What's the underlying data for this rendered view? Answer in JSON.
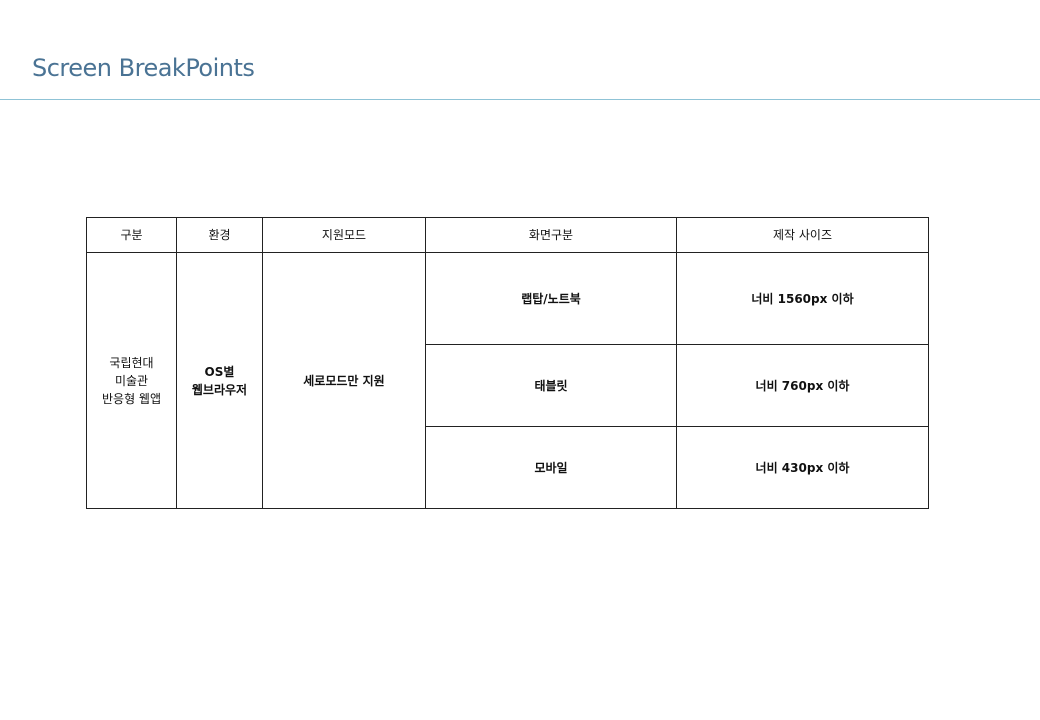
{
  "header": {
    "title": "Screen BreakPoints"
  },
  "table": {
    "headers": [
      "구분",
      "환경",
      "지원모드",
      "화면구분",
      "제작 사이즈"
    ],
    "category": [
      "국립현대",
      "미술관",
      "반응형 웹앱"
    ],
    "environment": [
      "OS별",
      "웹브라우저"
    ],
    "support_mode": "세로모드만 지원",
    "rows": [
      {
        "screen": "랩탑/노트북",
        "size": "너비 1560px 이하"
      },
      {
        "screen": "태블릿",
        "size": "너비 760px 이하"
      },
      {
        "screen": "모바일",
        "size": "너비 430px 이하"
      }
    ]
  }
}
